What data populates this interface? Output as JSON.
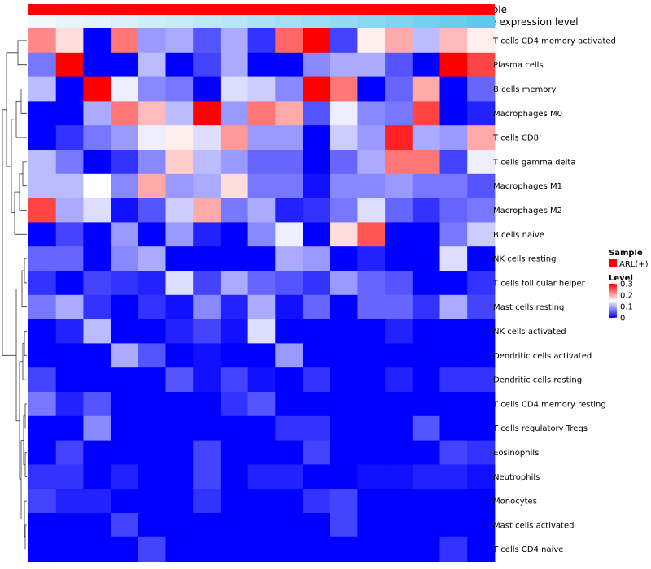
{
  "chart_data": {
    "type": "heatmap",
    "annotations": {
      "sample_label": "Sample",
      "gene_label": "Gene expression level"
    },
    "rows": [
      "T cells CD4 memory activated",
      "Plasma cells",
      "B cells memory",
      "Macrophages M0",
      "T cells CD8",
      "T cells gamma delta",
      "Macrophages M1",
      "Macrophages M2",
      "B cells naive",
      "NK cells resting",
      "T cells follicular helper",
      "Mast cells resting",
      "NK cells activated",
      "Dendritic cells activated",
      "Dendritic cells resting",
      "T cells CD4 memory resting",
      "T cells regulatory  Tregs",
      "Eosinophils",
      "Neutrophils",
      "Monocytes",
      "Mast cells activated",
      "T cells CD4 naive"
    ],
    "n_columns": 17,
    "color_scale": {
      "min": 0,
      "mid": 0.15,
      "max": 0.3,
      "low": "#0000ff",
      "mid_color": "#ffffff",
      "high": "#ff0000"
    },
    "values": [
      [
        0.22,
        0.17,
        0.0,
        0.23,
        0.09,
        0.1,
        0.05,
        0.1,
        0.03,
        0.24,
        0.3,
        0.04,
        0.16,
        0.2,
        0.11,
        0.19,
        0.16
      ],
      [
        0.07,
        0.3,
        0.0,
        0.0,
        0.11,
        0.0,
        0.04,
        0.1,
        0.0,
        0.0,
        0.08,
        0.1,
        0.1,
        0.05,
        0.0,
        0.3,
        0.26
      ],
      [
        0.11,
        0.0,
        0.3,
        0.14,
        0.08,
        0.07,
        0.0,
        0.13,
        0.12,
        0.08,
        0.3,
        0.23,
        0.0,
        0.06,
        0.2,
        0.0,
        0.06
      ],
      [
        0.0,
        0.0,
        0.1,
        0.23,
        0.19,
        0.11,
        0.3,
        0.09,
        0.23,
        0.2,
        0.05,
        0.14,
        0.08,
        0.07,
        0.26,
        0.0,
        0.02
      ],
      [
        0.0,
        0.03,
        0.07,
        0.09,
        0.14,
        0.16,
        0.13,
        0.21,
        0.09,
        0.09,
        0.0,
        0.12,
        0.09,
        0.28,
        0.1,
        0.09,
        0.2
      ],
      [
        0.11,
        0.07,
        0.0,
        0.03,
        0.08,
        0.18,
        0.11,
        0.09,
        0.06,
        0.06,
        0.0,
        0.06,
        0.1,
        0.23,
        0.23,
        0.04,
        0.14
      ],
      [
        0.11,
        0.11,
        0.15,
        0.08,
        0.2,
        0.09,
        0.1,
        0.17,
        0.07,
        0.07,
        0.01,
        0.08,
        0.08,
        0.09,
        0.07,
        0.07,
        0.05
      ],
      [
        0.26,
        0.1,
        0.13,
        0.01,
        0.05,
        0.12,
        0.2,
        0.07,
        0.1,
        0.02,
        0.03,
        0.07,
        0.13,
        0.06,
        0.03,
        0.06,
        0.07
      ],
      [
        0.0,
        0.04,
        0.0,
        0.09,
        0.0,
        0.09,
        0.02,
        0.0,
        0.08,
        0.14,
        0.0,
        0.17,
        0.25,
        0.0,
        0.0,
        0.07,
        0.12
      ],
      [
        0.06,
        0.06,
        0.0,
        0.08,
        0.1,
        0.0,
        0.0,
        0.0,
        0.0,
        0.1,
        0.09,
        0.0,
        0.02,
        0.0,
        0.0,
        0.13,
        0.0
      ],
      [
        0.03,
        0.0,
        0.04,
        0.03,
        0.02,
        0.13,
        0.04,
        0.1,
        0.06,
        0.05,
        0.03,
        0.09,
        0.06,
        0.05,
        0.0,
        0.0,
        0.03
      ],
      [
        0.07,
        0.1,
        0.03,
        0.0,
        0.03,
        0.01,
        0.08,
        0.02,
        0.1,
        0.01,
        0.06,
        0.0,
        0.06,
        0.06,
        0.03,
        0.1,
        0.04
      ],
      [
        0.0,
        0.02,
        0.11,
        0.0,
        0.0,
        0.02,
        0.04,
        0.01,
        0.13,
        0.0,
        0.0,
        0.0,
        0.0,
        0.02,
        0.0,
        0.0,
        0.0
      ],
      [
        0.0,
        0.0,
        0.0,
        0.1,
        0.05,
        0.0,
        0.01,
        0.0,
        0.0,
        0.09,
        0.0,
        0.0,
        0.0,
        0.0,
        0.0,
        0.0,
        0.0
      ],
      [
        0.04,
        0.0,
        0.0,
        0.0,
        0.0,
        0.05,
        0.01,
        0.04,
        0.01,
        0.0,
        0.03,
        0.0,
        0.0,
        0.02,
        0.0,
        0.03,
        0.03
      ],
      [
        0.07,
        0.02,
        0.05,
        0.0,
        0.0,
        0.0,
        0.0,
        0.03,
        0.05,
        0.0,
        0.0,
        0.0,
        0.0,
        0.0,
        0.0,
        0.0,
        0.0
      ],
      [
        0.0,
        0.0,
        0.08,
        0.0,
        0.0,
        0.0,
        0.0,
        0.0,
        0.0,
        0.03,
        0.03,
        0.0,
        0.0,
        0.0,
        0.05,
        0.0,
        0.0
      ],
      [
        0.0,
        0.04,
        0.0,
        0.0,
        0.0,
        0.0,
        0.04,
        0.0,
        0.0,
        0.0,
        0.04,
        0.0,
        0.0,
        0.0,
        0.0,
        0.04,
        0.03
      ],
      [
        0.03,
        0.03,
        0.0,
        0.02,
        0.0,
        0.0,
        0.04,
        0.0,
        0.02,
        0.02,
        0.0,
        0.0,
        0.01,
        0.01,
        0.02,
        0.02,
        0.01
      ],
      [
        0.04,
        0.02,
        0.02,
        0.0,
        0.0,
        0.0,
        0.03,
        0.0,
        0.0,
        0.0,
        0.03,
        0.04,
        0.0,
        0.0,
        0.0,
        0.0,
        0.0
      ],
      [
        0.0,
        0.0,
        0.0,
        0.04,
        0.0,
        0.0,
        0.0,
        0.0,
        0.0,
        0.0,
        0.0,
        0.04,
        0.0,
        0.0,
        0.0,
        0.0,
        0.0
      ],
      [
        0.0,
        0.0,
        0.0,
        0.0,
        0.04,
        0.0,
        0.0,
        0.0,
        0.0,
        0.0,
        0.0,
        0.0,
        0.0,
        0.0,
        0.0,
        0.03,
        0.0
      ]
    ],
    "gene_expression": [
      0.02,
      0.08,
      0.12,
      0.18,
      0.22,
      0.27,
      0.32,
      0.37,
      0.43,
      0.48,
      0.53,
      0.58,
      0.64,
      0.7,
      0.76,
      0.82,
      0.9
    ],
    "sample_colors": "#ff0000",
    "legend": {
      "sample_title": "Sample",
      "sample_entry": "ARL(+)",
      "level_title": "Level",
      "ticks": [
        "0.3",
        "0.2",
        "0.1",
        "0"
      ],
      "tick_values": [
        0.3,
        0.2,
        0.1,
        0
      ]
    }
  }
}
